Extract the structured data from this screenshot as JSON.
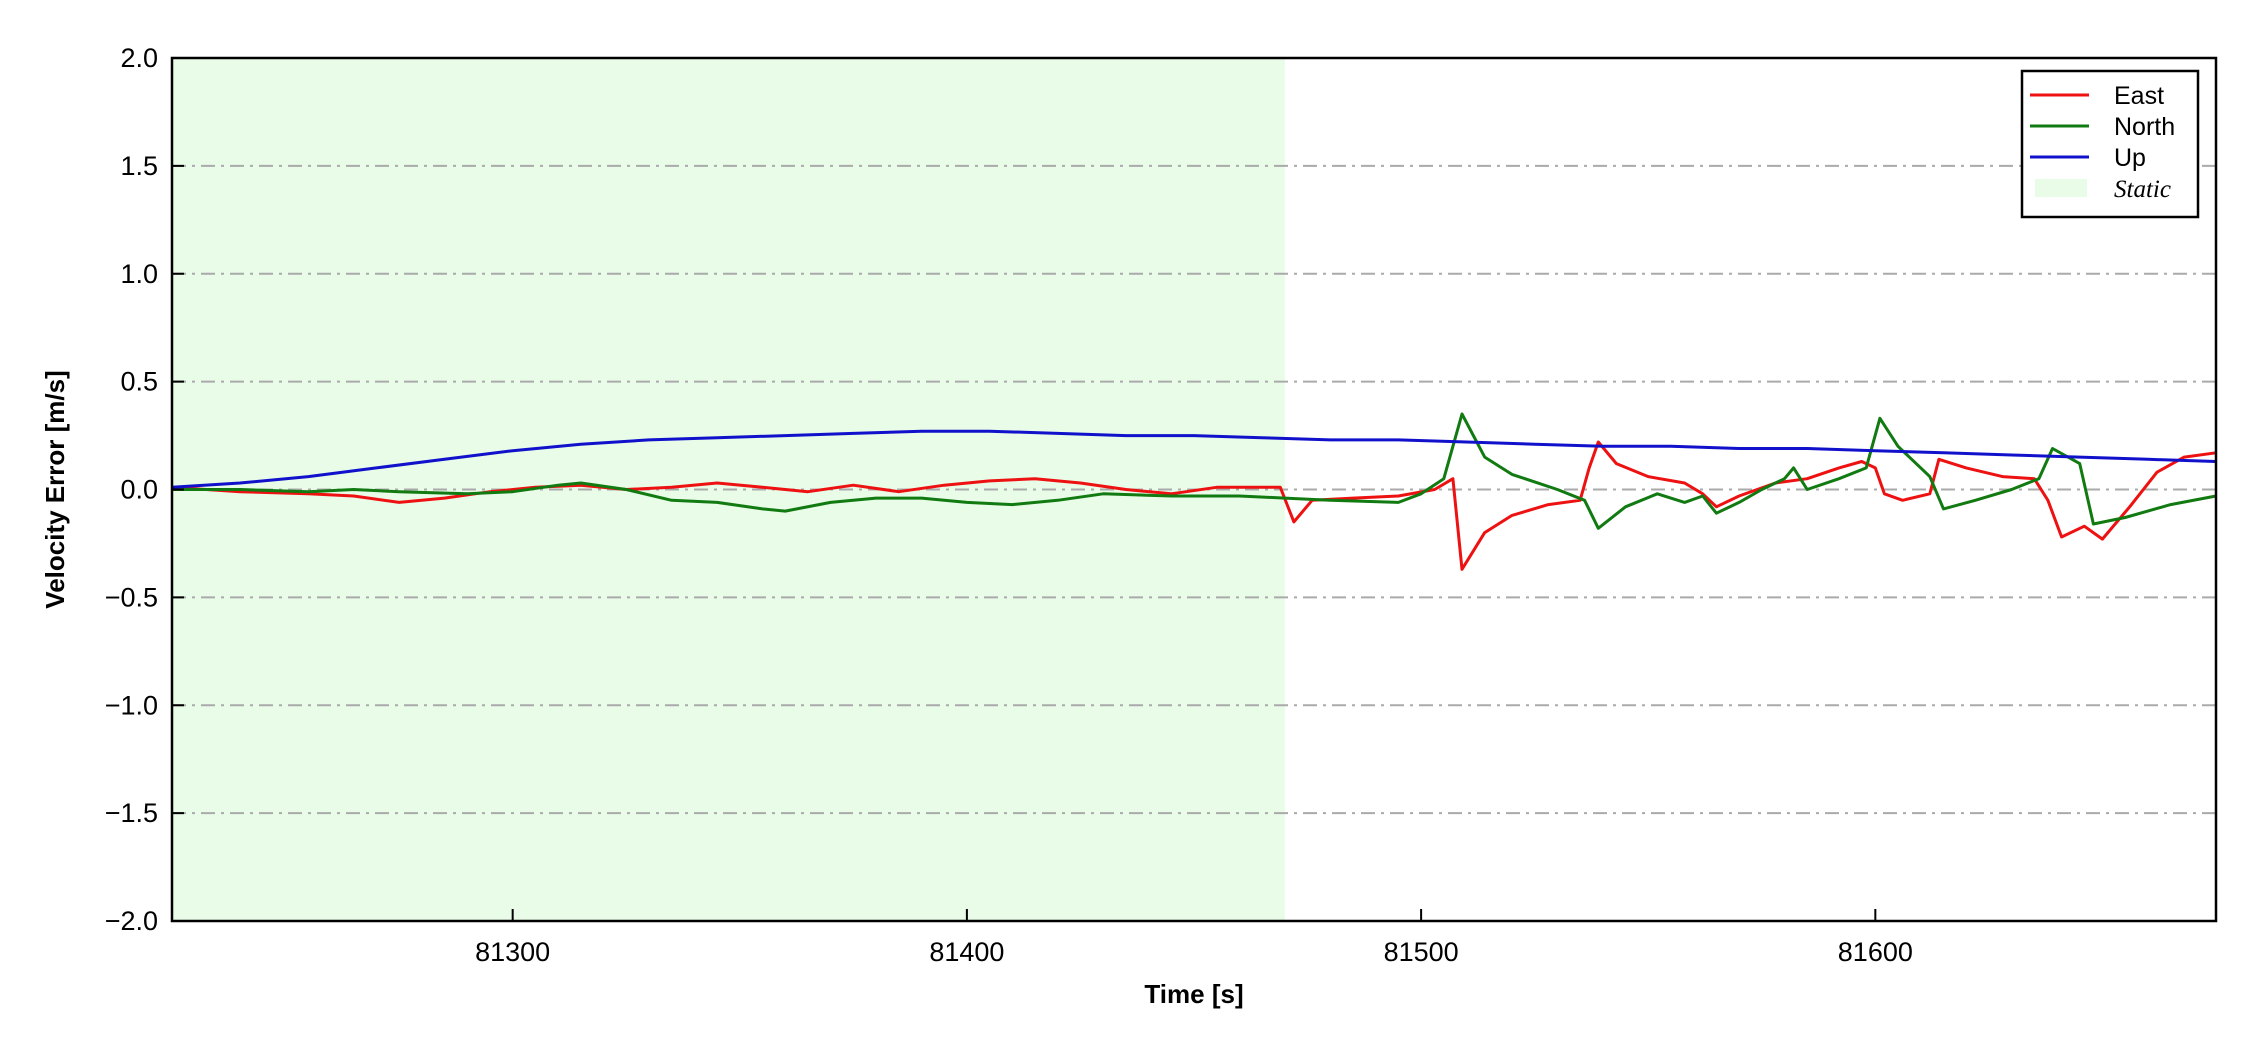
{
  "chart_data": {
    "type": "line",
    "title": "",
    "xlabel": "Time [s]",
    "ylabel": "Velocity Error [m/s]",
    "xlim": [
      81225,
      81675
    ],
    "ylim": [
      -2.0,
      2.0
    ],
    "xticks": [
      81300,
      81400,
      81500,
      81600
    ],
    "xtick_labels": [
      "81300",
      "81400",
      "81500",
      "81600"
    ],
    "yticks": [
      -2.0,
      -1.5,
      -1.0,
      -0.5,
      0.0,
      0.5,
      1.0,
      1.5,
      2.0
    ],
    "ytick_labels": [
      "−2.0",
      "−1.5",
      "−1.0",
      "−0.5",
      "0.0",
      "0.5",
      "1.0",
      "1.5",
      "2.0"
    ],
    "grid": "horizontal dash-dot",
    "legend_position": "top-right",
    "static_region": {
      "name": "Static",
      "x_start": 81225,
      "x_end": 81470,
      "color": "#e8fce8"
    },
    "series": [
      {
        "name": "East",
        "color": "#ee1111",
        "points": [
          [
            81225,
            0.01
          ],
          [
            81240,
            -0.01
          ],
          [
            81255,
            -0.02
          ],
          [
            81265,
            -0.03
          ],
          [
            81275,
            -0.06
          ],
          [
            81285,
            -0.04
          ],
          [
            81295,
            -0.01
          ],
          [
            81305,
            0.01
          ],
          [
            81315,
            0.02
          ],
          [
            81325,
            0.0
          ],
          [
            81335,
            0.01
          ],
          [
            81345,
            0.03
          ],
          [
            81355,
            0.01
          ],
          [
            81365,
            -0.01
          ],
          [
            81375,
            0.02
          ],
          [
            81385,
            -0.01
          ],
          [
            81395,
            0.02
          ],
          [
            81405,
            0.04
          ],
          [
            81415,
            0.05
          ],
          [
            81425,
            0.03
          ],
          [
            81435,
            0.0
          ],
          [
            81445,
            -0.02
          ],
          [
            81455,
            0.01
          ],
          [
            81465,
            0.01
          ],
          [
            81469,
            0.01
          ],
          [
            81472,
            -0.15
          ],
          [
            81476,
            -0.05
          ],
          [
            81485,
            -0.04
          ],
          [
            81495,
            -0.03
          ],
          [
            81503,
            0.0
          ],
          [
            81507,
            0.05
          ],
          [
            81509,
            -0.37
          ],
          [
            81514,
            -0.2
          ],
          [
            81520,
            -0.12
          ],
          [
            81528,
            -0.07
          ],
          [
            81535,
            -0.05
          ],
          [
            81537,
            0.1
          ],
          [
            81539,
            0.22
          ],
          [
            81543,
            0.12
          ],
          [
            81550,
            0.06
          ],
          [
            81558,
            0.03
          ],
          [
            81562,
            -0.02
          ],
          [
            81565,
            -0.08
          ],
          [
            81570,
            -0.03
          ],
          [
            81578,
            0.03
          ],
          [
            81585,
            0.05
          ],
          [
            81592,
            0.1
          ],
          [
            81597,
            0.13
          ],
          [
            81600,
            0.1
          ],
          [
            81602,
            -0.02
          ],
          [
            81606,
            -0.05
          ],
          [
            81612,
            -0.02
          ],
          [
            81614,
            0.14
          ],
          [
            81620,
            0.1
          ],
          [
            81628,
            0.06
          ],
          [
            81635,
            0.05
          ],
          [
            81638,
            -0.05
          ],
          [
            81641,
            -0.22
          ],
          [
            81646,
            -0.17
          ],
          [
            81650,
            -0.23
          ],
          [
            81656,
            -0.08
          ],
          [
            81662,
            0.08
          ],
          [
            81668,
            0.15
          ],
          [
            81675,
            0.17
          ]
        ]
      },
      {
        "name": "North",
        "color": "#117a11",
        "points": [
          [
            81225,
            0.0
          ],
          [
            81240,
            0.0
          ],
          [
            81255,
            -0.01
          ],
          [
            81265,
            0.0
          ],
          [
            81275,
            -0.01
          ],
          [
            81290,
            -0.02
          ],
          [
            81300,
            -0.01
          ],
          [
            81310,
            0.02
          ],
          [
            81315,
            0.03
          ],
          [
            81325,
            0.0
          ],
          [
            81335,
            -0.05
          ],
          [
            81345,
            -0.06
          ],
          [
            81355,
            -0.09
          ],
          [
            81360,
            -0.1
          ],
          [
            81370,
            -0.06
          ],
          [
            81380,
            -0.04
          ],
          [
            81390,
            -0.04
          ],
          [
            81400,
            -0.06
          ],
          [
            81410,
            -0.07
          ],
          [
            81420,
            -0.05
          ],
          [
            81430,
            -0.02
          ],
          [
            81445,
            -0.03
          ],
          [
            81460,
            -0.03
          ],
          [
            81470,
            -0.04
          ],
          [
            81480,
            -0.05
          ],
          [
            81495,
            -0.06
          ],
          [
            81500,
            -0.02
          ],
          [
            81505,
            0.05
          ],
          [
            81509,
            0.35
          ],
          [
            81514,
            0.15
          ],
          [
            81520,
            0.07
          ],
          [
            81530,
            0.0
          ],
          [
            81536,
            -0.05
          ],
          [
            81539,
            -0.18
          ],
          [
            81545,
            -0.08
          ],
          [
            81552,
            -0.02
          ],
          [
            81558,
            -0.06
          ],
          [
            81562,
            -0.03
          ],
          [
            81565,
            -0.11
          ],
          [
            81570,
            -0.06
          ],
          [
            81575,
            0.0
          ],
          [
            81580,
            0.05
          ],
          [
            81582,
            0.1
          ],
          [
            81585,
            0.0
          ],
          [
            81592,
            0.05
          ],
          [
            81598,
            0.1
          ],
          [
            81601,
            0.33
          ],
          [
            81605,
            0.2
          ],
          [
            81612,
            0.06
          ],
          [
            81615,
            -0.09
          ],
          [
            81622,
            -0.05
          ],
          [
            81630,
            0.0
          ],
          [
            81636,
            0.05
          ],
          [
            81639,
            0.19
          ],
          [
            81645,
            0.12
          ],
          [
            81648,
            -0.16
          ],
          [
            81655,
            -0.13
          ],
          [
            81665,
            -0.07
          ],
          [
            81675,
            -0.03
          ]
        ]
      },
      {
        "name": "Up",
        "color": "#1111cc",
        "points": [
          [
            81225,
            0.01
          ],
          [
            81240,
            0.03
          ],
          [
            81255,
            0.06
          ],
          [
            81270,
            0.1
          ],
          [
            81285,
            0.14
          ],
          [
            81300,
            0.18
          ],
          [
            81315,
            0.21
          ],
          [
            81330,
            0.23
          ],
          [
            81345,
            0.24
          ],
          [
            81360,
            0.25
          ],
          [
            81375,
            0.26
          ],
          [
            81390,
            0.27
          ],
          [
            81405,
            0.27
          ],
          [
            81420,
            0.26
          ],
          [
            81435,
            0.25
          ],
          [
            81450,
            0.25
          ],
          [
            81465,
            0.24
          ],
          [
            81480,
            0.23
          ],
          [
            81495,
            0.23
          ],
          [
            81510,
            0.22
          ],
          [
            81525,
            0.21
          ],
          [
            81540,
            0.2
          ],
          [
            81555,
            0.2
          ],
          [
            81570,
            0.19
          ],
          [
            81585,
            0.19
          ],
          [
            81600,
            0.18
          ],
          [
            81615,
            0.17
          ],
          [
            81630,
            0.16
          ],
          [
            81645,
            0.15
          ],
          [
            81660,
            0.14
          ],
          [
            81675,
            0.13
          ]
        ]
      }
    ]
  }
}
